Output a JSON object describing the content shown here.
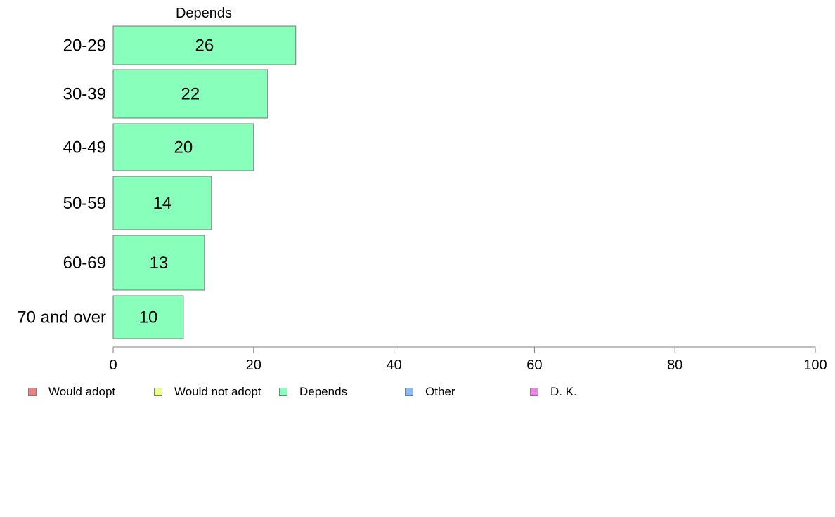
{
  "chart_data": {
    "type": "bar",
    "orientation": "horizontal",
    "title": "Depends",
    "categories": [
      "20-29",
      "30-39",
      "40-49",
      "50-59",
      "60-69",
      "70 and over"
    ],
    "series": [
      {
        "name": "Depends",
        "values": [
          26,
          22,
          20,
          14,
          13,
          10
        ],
        "color": "#88ffbb"
      }
    ],
    "data_labels": [
      "26",
      "22",
      "20",
      "14",
      "13",
      "10"
    ],
    "xlim": [
      0,
      100
    ],
    "xticks": [
      0,
      20,
      40,
      60,
      80,
      100
    ],
    "xtick_labels": [
      "0",
      "20",
      "40",
      "60",
      "80",
      "100"
    ],
    "grid": false,
    "legend_position": "bottom",
    "legend": [
      {
        "label": "Would adopt",
        "color": "#f08080"
      },
      {
        "label": "Would not adopt",
        "color": "#eeff80"
      },
      {
        "label": "Depends",
        "color": "#88ffbb"
      },
      {
        "label": "Other",
        "color": "#88bbf8"
      },
      {
        "label": "D. K.",
        "color": "#ee80ee"
      }
    ]
  }
}
